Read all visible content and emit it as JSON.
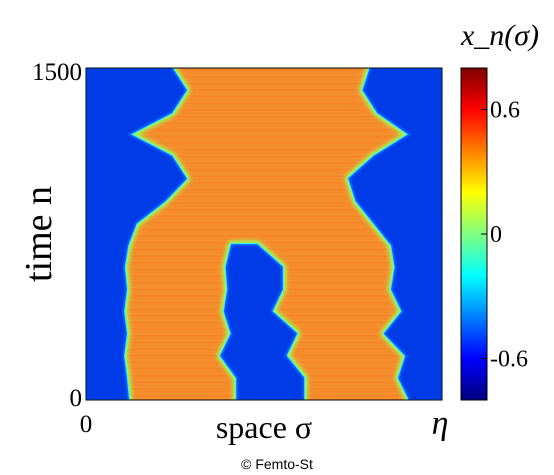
{
  "chart_data": {
    "type": "heatmap",
    "title": "",
    "xlabel": "space σ",
    "ylabel": "time n",
    "x_tick_labels": [
      "0",
      "η"
    ],
    "y_tick_labels": [
      "0",
      "1500"
    ],
    "ylim": [
      0,
      1500
    ],
    "colorbar": {
      "label": "x_n(σ)",
      "tick_labels": [
        "0.6",
        "0",
        "-0.6"
      ],
      "tick_values": [
        0.6,
        0,
        -0.6
      ],
      "range": [
        -0.8,
        0.8
      ],
      "colormap": "jet"
    },
    "state_values": {
      "high": 0.6,
      "low": -0.6
    },
    "domains": [
      {
        "name": "left-low",
        "time_samples": [
          0,
          100,
          200,
          300,
          400,
          500,
          600,
          700,
          800,
          900,
          1000,
          1100,
          1200,
          1300,
          1400,
          1500
        ],
        "left_boundary": [
          0,
          0,
          0,
          0,
          0,
          0,
          0,
          0,
          0,
          0,
          0,
          0,
          0,
          0,
          0,
          0
        ],
        "right_boundary": [
          0.118,
          0.112,
          0.104,
          0.112,
          0.104,
          0.112,
          0.106,
          0.116,
          0.14,
          0.22,
          0.28,
          0.24,
          0.12,
          0.24,
          0.28,
          0.24
        ]
      },
      {
        "name": "center-low",
        "time_samples": [
          0,
          100,
          200,
          300,
          400,
          500,
          600,
          700
        ],
        "left_boundary": [
          0.425,
          0.425,
          0.38,
          0.41,
          0.39,
          0.4,
          0.395,
          0.41
        ],
        "right_boundary": [
          0.61,
          0.61,
          0.56,
          0.59,
          0.52,
          0.55,
          0.55,
          0.48
        ]
      },
      {
        "name": "right-low",
        "time_samples": [
          0,
          100,
          200,
          300,
          400,
          500,
          600,
          700,
          800,
          900,
          1000,
          1100,
          1200,
          1300,
          1400,
          1500
        ],
        "left_boundary": [
          0.91,
          0.88,
          0.9,
          0.84,
          0.89,
          0.86,
          0.87,
          0.86,
          0.81,
          0.76,
          0.74,
          0.81,
          0.91,
          0.82,
          0.78,
          0.8
        ],
        "right_boundary": [
          1,
          1,
          1,
          1,
          1,
          1,
          1,
          1,
          1,
          1,
          1,
          1,
          1,
          1,
          1,
          1
        ]
      }
    ]
  },
  "credit": "© Femto-St"
}
